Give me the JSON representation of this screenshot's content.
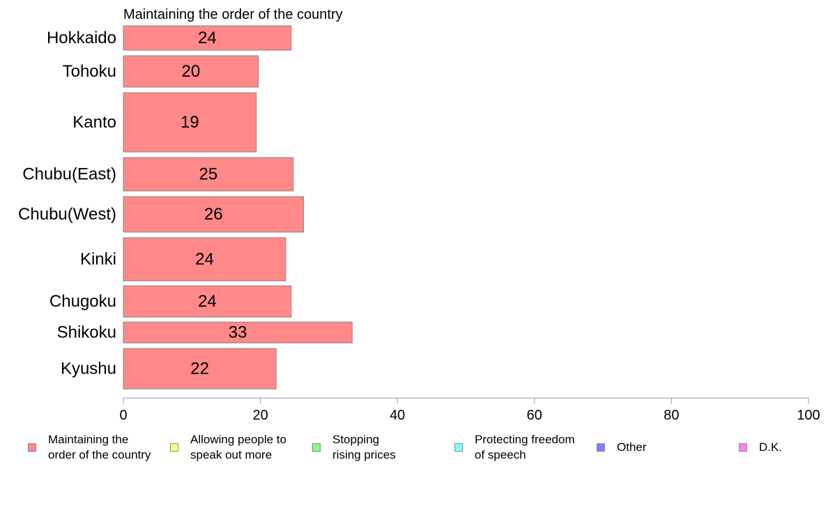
{
  "chart_data": {
    "type": "bar",
    "orientation": "horizontal",
    "title": "Maintaining the order of the country",
    "categories": [
      "Hokkaido",
      "Tohoku",
      "Kanto",
      "Chubu(East)",
      "Chubu(West)",
      "Kinki",
      "Chugoku",
      "Shikoku",
      "Kyushu"
    ],
    "series": [
      {
        "name": "Maintaining the order of the country",
        "values": [
          24.5,
          19.7,
          19.4,
          24.8,
          26.3,
          23.7,
          24.5,
          33.4,
          22.3
        ],
        "labels": [
          "24",
          "20",
          "19",
          "25",
          "26",
          "24",
          "24",
          "33",
          "22"
        ],
        "color": "#ff8888"
      }
    ],
    "xlim": [
      0,
      100
    ],
    "x_ticks": [
      "0",
      "20",
      "40",
      "60",
      "80",
      "100"
    ],
    "grid": false,
    "legend_position": "bottom"
  },
  "legend": [
    {
      "label": "Maintaining the\norder of the country",
      "color": "#ff8888"
    },
    {
      "label": "Allowing people to\nspeak out more",
      "color": "#ffff80"
    },
    {
      "label": "Stopping\nrising prices",
      "color": "#80ff80"
    },
    {
      "label": "Protecting freedom\nof speech",
      "color": "#80ffff"
    },
    {
      "label": "Other",
      "color": "#8080ff"
    },
    {
      "label": "D.K.",
      "color": "#ff80ff"
    }
  ]
}
